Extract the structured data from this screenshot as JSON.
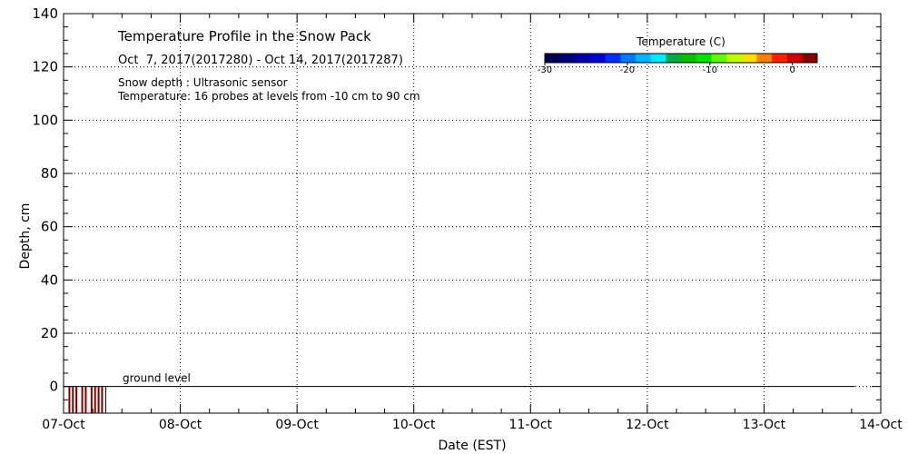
{
  "chart_data": {
    "type": "heatmap",
    "title": "Temperature Profile in the Snow Pack",
    "subtitle": "Oct  7, 2017(2017280) - Oct 14, 2017(2017287)",
    "notes": [
      "Snow depth : Ultrasonic sensor",
      "Temperature: 16 probes at levels from -10 cm to 90 cm"
    ],
    "xlabel": "Date (EST)",
    "ylabel": "Depth, cm",
    "x_ticks": [
      "07-Oct",
      "08-Oct",
      "09-Oct",
      "10-Oct",
      "11-Oct",
      "12-Oct",
      "13-Oct",
      "14-Oct"
    ],
    "xlim_days": [
      0,
      7
    ],
    "ylim": [
      -10,
      140
    ],
    "y_ticks": [
      0,
      20,
      40,
      60,
      80,
      100,
      120,
      140
    ],
    "grid": true,
    "annotation": {
      "text": "ground level",
      "y": 0
    },
    "ground_level_end_day": 6.78,
    "colorbar": {
      "title": "Temperature (C)",
      "min": -30,
      "max": 3,
      "tick_values": [
        -30,
        -20,
        -10,
        0
      ],
      "tick_labels": [
        "-30",
        "-20",
        "-10",
        "0"
      ],
      "colors": [
        "#000050",
        "#00007a",
        "#0000a8",
        "#0000d2",
        "#0030ff",
        "#0078ff",
        "#00b4ff",
        "#00e8ff",
        "#00aa40",
        "#00c000",
        "#00e000",
        "#60ff00",
        "#c0ff00",
        "#ffe000",
        "#ff8000",
        "#ff2000",
        "#d00000",
        "#800000"
      ]
    },
    "data_strips": {
      "y_range": [
        -10,
        0
      ],
      "color": "#800000",
      "x_days": [
        0.05,
        0.08,
        0.11,
        0.16,
        0.19,
        0.24,
        0.27,
        0.3,
        0.33
      ]
    }
  }
}
